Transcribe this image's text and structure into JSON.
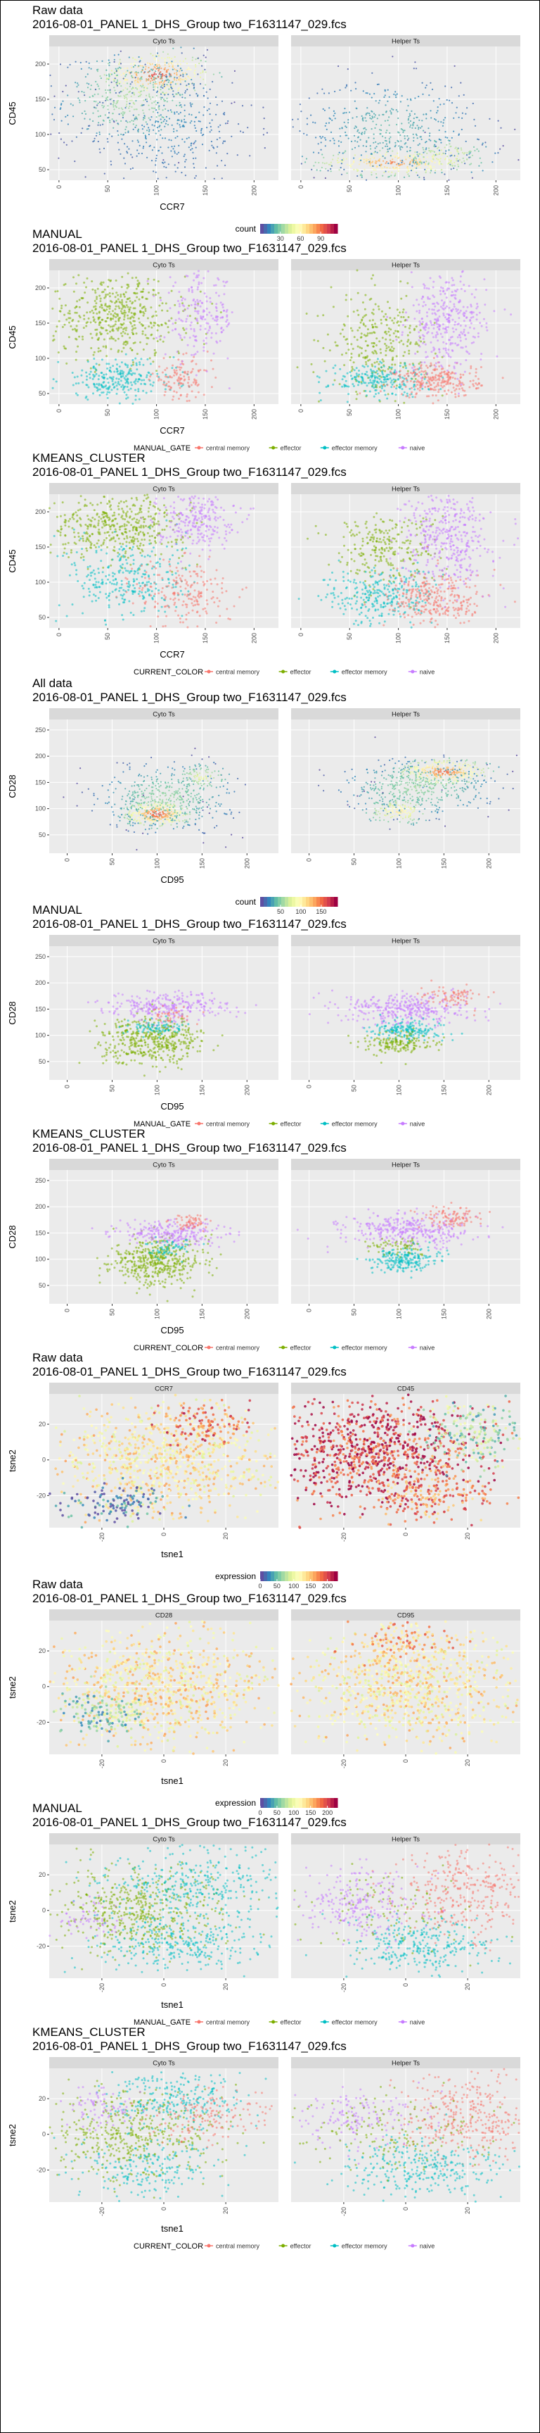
{
  "common": {
    "filename": "2016-08-01_PANEL 1_DHS_Group two_F1631147_029.fcs",
    "panels_cells": [
      "Cyto Ts",
      "Helper Ts"
    ]
  },
  "colors": {
    "panel_bg": "#ebebeb",
    "strip_bg": "#d9d9d9",
    "gate_central_memory": "#f8766d",
    "gate_effector": "#7cae00",
    "gate_effector_memory": "#00bfc4",
    "gate_naive": "#c77cff",
    "density_low": "#5e4fa2",
    "density_mid": "#ffffbf",
    "density_high": "#9e0142"
  },
  "chart_data": [
    {
      "type": "scatter",
      "section_title": "Raw data",
      "subtitle": "2016-08-01_PANEL 1_DHS_Group two_F1631147_029.fcs",
      "facets": [
        "Cyto Ts",
        "Helper Ts"
      ],
      "xlabel": "CCR7",
      "ylabel": "CD45",
      "x_ticks": [
        "0",
        "50",
        "100",
        "150",
        "200"
      ],
      "y_ticks": [
        "50",
        "100",
        "150",
        "200"
      ],
      "xlim": [
        -10,
        225
      ],
      "ylim": [
        35,
        225
      ],
      "color_mode": "density",
      "legend": {
        "title": "count",
        "ticks": [
          "30",
          "60",
          "90"
        ],
        "range": [
          0,
          115
        ]
      },
      "clusters": [
        [
          {
            "x": 100,
            "y": 185,
            "sx": 28,
            "sy": 16,
            "n": 320,
            "level": 0.9
          },
          {
            "x": 75,
            "y": 150,
            "sx": 35,
            "sy": 30,
            "n": 420,
            "level": 0.35
          },
          {
            "x": 110,
            "y": 110,
            "sx": 45,
            "sy": 45,
            "n": 380,
            "level": 0.12
          }
        ],
        [
          {
            "x": 95,
            "y": 60,
            "sx": 40,
            "sy": 9,
            "n": 300,
            "level": 0.8
          },
          {
            "x": 90,
            "y": 110,
            "sx": 45,
            "sy": 35,
            "n": 450,
            "level": 0.2
          },
          {
            "x": 150,
            "y": 70,
            "sx": 20,
            "sy": 12,
            "n": 120,
            "level": 0.5
          }
        ]
      ]
    },
    {
      "type": "scatter",
      "section_title": "MANUAL",
      "subtitle": "2016-08-01_PANEL 1_DHS_Group two_F1631147_029.fcs",
      "facets": [
        "Cyto Ts",
        "Helper Ts"
      ],
      "xlabel": "CCR7",
      "ylabel": "CD45",
      "x_ticks": [
        "0",
        "50",
        "100",
        "150",
        "200"
      ],
      "y_ticks": [
        "50",
        "100",
        "150",
        "200"
      ],
      "xlim": [
        -10,
        225
      ],
      "ylim": [
        35,
        225
      ],
      "color_mode": "gate",
      "legend": {
        "title": "MANUAL_GATE",
        "items": [
          "central memory",
          "effector",
          "effector memory",
          "naive"
        ]
      },
      "clusters": [
        [
          {
            "x": 60,
            "y": 160,
            "sx": 35,
            "sy": 30,
            "n": 500,
            "g": 1
          },
          {
            "x": 60,
            "y": 70,
            "sx": 30,
            "sy": 14,
            "n": 250,
            "g": 2
          },
          {
            "x": 125,
            "y": 70,
            "sx": 15,
            "sy": 14,
            "n": 120,
            "g": 0
          },
          {
            "x": 145,
            "y": 160,
            "sx": 18,
            "sy": 30,
            "n": 200,
            "g": 3
          }
        ],
        [
          {
            "x": 80,
            "y": 120,
            "sx": 25,
            "sy": 35,
            "n": 300,
            "g": 1
          },
          {
            "x": 80,
            "y": 70,
            "sx": 25,
            "sy": 12,
            "n": 220,
            "g": 2
          },
          {
            "x": 140,
            "y": 68,
            "sx": 22,
            "sy": 12,
            "n": 250,
            "g": 0
          },
          {
            "x": 150,
            "y": 150,
            "sx": 20,
            "sy": 35,
            "n": 350,
            "g": 3
          }
        ]
      ]
    },
    {
      "type": "scatter",
      "section_title": "KMEANS_CLUSTER",
      "subtitle": "2016-08-01_PANEL 1_DHS_Group two_F1631147_029.fcs",
      "facets": [
        "Cyto Ts",
        "Helper Ts"
      ],
      "xlabel": "CCR7",
      "ylabel": "CD45",
      "x_ticks": [
        "0",
        "50",
        "100",
        "150",
        "200"
      ],
      "y_ticks": [
        "50",
        "100",
        "150",
        "200"
      ],
      "xlim": [
        -10,
        225
      ],
      "ylim": [
        35,
        225
      ],
      "color_mode": "gate",
      "legend": {
        "title": "CURRENT_COLOR",
        "items": [
          "central memory",
          "effector",
          "effector memory",
          "naive"
        ]
      },
      "clusters": [
        [
          {
            "x": 60,
            "y": 180,
            "sx": 35,
            "sy": 22,
            "n": 450,
            "g": 1
          },
          {
            "x": 70,
            "y": 105,
            "sx": 30,
            "sy": 30,
            "n": 300,
            "g": 2
          },
          {
            "x": 130,
            "y": 85,
            "sx": 25,
            "sy": 25,
            "n": 200,
            "g": 0
          },
          {
            "x": 140,
            "y": 190,
            "sx": 20,
            "sy": 20,
            "n": 250,
            "g": 3
          }
        ],
        [
          {
            "x": 85,
            "y": 150,
            "sx": 28,
            "sy": 25,
            "n": 250,
            "g": 1
          },
          {
            "x": 80,
            "y": 80,
            "sx": 28,
            "sy": 20,
            "n": 280,
            "g": 2
          },
          {
            "x": 140,
            "y": 75,
            "sx": 25,
            "sy": 20,
            "n": 300,
            "g": 0
          },
          {
            "x": 150,
            "y": 165,
            "sx": 22,
            "sy": 35,
            "n": 400,
            "g": 3
          }
        ]
      ]
    },
    {
      "type": "scatter",
      "section_title": "All data",
      "subtitle": "2016-08-01_PANEL 1_DHS_Group two_F1631147_029.fcs",
      "facets": [
        "Cyto Ts",
        "Helper Ts"
      ],
      "xlabel": "CD95",
      "ylabel": "CD28",
      "x_ticks": [
        "0",
        "50",
        "100",
        "150",
        "200"
      ],
      "y_ticks": [
        "50",
        "100",
        "150",
        "200",
        "250"
      ],
      "xlim": [
        -20,
        235
      ],
      "ylim": [
        15,
        270
      ],
      "color_mode": "density",
      "legend": {
        "title": "count",
        "ticks": [
          "50",
          "100",
          "150"
        ],
        "range": [
          0,
          190
        ]
      },
      "clusters": [
        [
          {
            "x": 100,
            "y": 90,
            "sx": 18,
            "sy": 12,
            "n": 350,
            "level": 0.9
          },
          {
            "x": 110,
            "y": 120,
            "sx": 35,
            "sy": 30,
            "n": 450,
            "level": 0.3
          },
          {
            "x": 150,
            "y": 160,
            "sx": 15,
            "sy": 12,
            "n": 100,
            "level": 0.45
          }
        ],
        [
          {
            "x": 150,
            "y": 170,
            "sx": 25,
            "sy": 12,
            "n": 320,
            "level": 0.85
          },
          {
            "x": 120,
            "y": 140,
            "sx": 40,
            "sy": 25,
            "n": 450,
            "level": 0.3
          },
          {
            "x": 100,
            "y": 95,
            "sx": 18,
            "sy": 12,
            "n": 150,
            "level": 0.6
          }
        ]
      ]
    },
    {
      "type": "scatter",
      "section_title": "MANUAL",
      "subtitle": "2016-08-01_PANEL 1_DHS_Group two_F1631147_029.fcs",
      "facets": [
        "Cyto Ts",
        "Helper Ts"
      ],
      "xlabel": "CD95",
      "ylabel": "CD28",
      "x_ticks": [
        "0",
        "50",
        "100",
        "150",
        "200"
      ],
      "y_ticks": [
        "50",
        "100",
        "150",
        "200",
        "250"
      ],
      "xlim": [
        -20,
        235
      ],
      "ylim": [
        15,
        270
      ],
      "color_mode": "gate",
      "legend": {
        "title": "MANUAL_GATE",
        "items": [
          "central memory",
          "effector",
          "effector memory",
          "naive"
        ]
      },
      "clusters": [
        [
          {
            "x": 95,
            "y": 90,
            "sx": 28,
            "sy": 22,
            "n": 450,
            "g": 1
          },
          {
            "x": 110,
            "y": 155,
            "sx": 35,
            "sy": 13,
            "n": 280,
            "g": 3
          },
          {
            "x": 100,
            "y": 115,
            "sx": 15,
            "sy": 8,
            "n": 80,
            "g": 2
          },
          {
            "x": 120,
            "y": 140,
            "sx": 15,
            "sy": 10,
            "n": 40,
            "g": 0
          }
        ],
        [
          {
            "x": 110,
            "y": 150,
            "sx": 35,
            "sy": 15,
            "n": 350,
            "g": 3
          },
          {
            "x": 110,
            "y": 110,
            "sx": 20,
            "sy": 10,
            "n": 180,
            "g": 2
          },
          {
            "x": 100,
            "y": 85,
            "sx": 18,
            "sy": 10,
            "n": 160,
            "g": 1
          },
          {
            "x": 160,
            "y": 175,
            "sx": 18,
            "sy": 10,
            "n": 80,
            "g": 0
          }
        ]
      ]
    },
    {
      "type": "scatter",
      "section_title": "KMEANS_CLUSTER",
      "subtitle": "2016-08-01_PANEL 1_DHS_Group two_F1631147_029.fcs",
      "facets": [
        "Cyto Ts",
        "Helper Ts"
      ],
      "xlabel": "CD95",
      "ylabel": "CD28",
      "x_ticks": [
        "0",
        "50",
        "100",
        "150",
        "200"
      ],
      "y_ticks": [
        "50",
        "100",
        "150",
        "200",
        "250"
      ],
      "xlim": [
        -20,
        235
      ],
      "ylim": [
        15,
        270
      ],
      "color_mode": "gate",
      "legend": {
        "title": "CURRENT_COLOR",
        "items": [
          "central memory",
          "effector",
          "effector memory",
          "naive"
        ]
      },
      "clusters": [
        [
          {
            "x": 100,
            "y": 95,
            "sx": 25,
            "sy": 22,
            "n": 450,
            "g": 1
          },
          {
            "x": 115,
            "y": 150,
            "sx": 30,
            "sy": 12,
            "n": 250,
            "g": 3
          },
          {
            "x": 140,
            "y": 170,
            "sx": 12,
            "sy": 8,
            "n": 60,
            "g": 0
          },
          {
            "x": 110,
            "y": 120,
            "sx": 15,
            "sy": 8,
            "n": 60,
            "g": 2
          }
        ],
        [
          {
            "x": 110,
            "y": 155,
            "sx": 35,
            "sy": 15,
            "n": 350,
            "g": 3
          },
          {
            "x": 105,
            "y": 100,
            "sx": 18,
            "sy": 12,
            "n": 220,
            "g": 2
          },
          {
            "x": 160,
            "y": 180,
            "sx": 18,
            "sy": 10,
            "n": 100,
            "g": 0
          },
          {
            "x": 100,
            "y": 125,
            "sx": 15,
            "sy": 8,
            "n": 60,
            "g": 1
          }
        ]
      ]
    },
    {
      "type": "scatter",
      "section_title": "Raw data",
      "subtitle": "2016-08-01_PANEL 1_DHS_Group two_F1631147_029.fcs",
      "facets": [
        "CCR7",
        "CD45"
      ],
      "xlabel": "tsne1",
      "ylabel": "tsne2",
      "x_ticks": [
        "-20",
        "0",
        "20"
      ],
      "y_ticks": [
        "-20",
        "0",
        "20"
      ],
      "xlim": [
        -37,
        37
      ],
      "ylim": [
        -38,
        37
      ],
      "color_mode": "expression",
      "legend": {
        "title": "expression",
        "ticks": [
          "0",
          "50",
          "100",
          "150",
          "200"
        ],
        "range": [
          0,
          230
        ]
      },
      "facet_scale": [
        "viridis-ish",
        "spectral"
      ],
      "clusters": [
        [
          {
            "x": 0,
            "y": 0,
            "sx": 18,
            "sy": 16,
            "n": 900,
            "level": 0.55
          },
          {
            "x": -15,
            "y": -25,
            "sx": 8,
            "sy": 5,
            "n": 120,
            "level": 0.05
          },
          {
            "x": 15,
            "y": 20,
            "sx": 8,
            "sy": 6,
            "n": 120,
            "level": 0.8
          }
        ],
        [
          {
            "x": -10,
            "y": 5,
            "sx": 16,
            "sy": 15,
            "n": 900,
            "level": 0.9
          },
          {
            "x": 20,
            "y": 15,
            "sx": 8,
            "sy": 8,
            "n": 200,
            "level": 0.3
          },
          {
            "x": 10,
            "y": -20,
            "sx": 10,
            "sy": 8,
            "n": 200,
            "level": 0.75
          }
        ]
      ]
    },
    {
      "type": "scatter",
      "section_title": "Raw data",
      "subtitle": "2016-08-01_PANEL 1_DHS_Group two_F1631147_029.fcs",
      "facets": [
        "CD28",
        "CD95"
      ],
      "xlabel": "tsne1",
      "ylabel": "tsne2",
      "x_ticks": [
        "-20",
        "0",
        "20"
      ],
      "y_ticks": [
        "-20",
        "0",
        "20"
      ],
      "xlim": [
        -37,
        37
      ],
      "ylim": [
        -38,
        37
      ],
      "color_mode": "expression",
      "legend": {
        "title": "expression",
        "ticks": [
          "0",
          "50",
          "100",
          "150",
          "200"
        ],
        "range": [
          0,
          230
        ]
      },
      "clusters": [
        [
          {
            "x": 0,
            "y": 0,
            "sx": 18,
            "sy": 16,
            "n": 900,
            "level": 0.55
          },
          {
            "x": -20,
            "y": -15,
            "sx": 7,
            "sy": 6,
            "n": 150,
            "level": 0.25
          }
        ],
        [
          {
            "x": 0,
            "y": 0,
            "sx": 18,
            "sy": 16,
            "n": 900,
            "level": 0.55
          },
          {
            "x": 0,
            "y": 25,
            "sx": 8,
            "sy": 6,
            "n": 120,
            "level": 0.7
          }
        ]
      ]
    },
    {
      "type": "scatter",
      "section_title": "MANUAL",
      "subtitle": "2016-08-01_PANEL 1_DHS_Group two_F1631147_029.fcs",
      "facets": [
        "Cyto Ts",
        "Helper Ts"
      ],
      "xlabel": "tsne1",
      "ylabel": "tsne2",
      "x_ticks": [
        "-20",
        "0",
        "20"
      ],
      "y_ticks": [
        "-20",
        "0",
        "20"
      ],
      "xlim": [
        -37,
        37
      ],
      "ylim": [
        -38,
        37
      ],
      "color_mode": "gate",
      "legend": {
        "title": "MANUAL_GATE",
        "items": [
          "central memory",
          "effector",
          "effector memory",
          "naive"
        ]
      },
      "clusters": [
        [
          {
            "x": -10,
            "y": 0,
            "sx": 14,
            "sy": 12,
            "n": 500,
            "g": 1
          },
          {
            "x": 10,
            "y": 15,
            "sx": 14,
            "sy": 10,
            "n": 350,
            "g": 2
          },
          {
            "x": 5,
            "y": -20,
            "sx": 14,
            "sy": 8,
            "n": 300,
            "g": 2
          },
          {
            "x": -25,
            "y": -5,
            "sx": 5,
            "sy": 5,
            "n": 60,
            "g": 3
          }
        ],
        [
          {
            "x": 20,
            "y": 10,
            "sx": 12,
            "sy": 12,
            "n": 350,
            "g": 0
          },
          {
            "x": 5,
            "y": -20,
            "sx": 12,
            "sy": 8,
            "n": 300,
            "g": 2
          },
          {
            "x": -15,
            "y": 5,
            "sx": 10,
            "sy": 10,
            "n": 250,
            "g": 3
          },
          {
            "x": -5,
            "y": 0,
            "sx": 15,
            "sy": 12,
            "n": 100,
            "g": 1
          }
        ]
      ]
    },
    {
      "type": "scatter",
      "section_title": "KMEANS_CLUSTER",
      "subtitle": "2016-08-01_PANEL 1_DHS_Group two_F1631147_029.fcs",
      "facets": [
        "Cyto Ts",
        "Helper Ts"
      ],
      "xlabel": "tsne1",
      "ylabel": "tsne2",
      "x_ticks": [
        "-20",
        "0",
        "20"
      ],
      "y_ticks": [
        "-20",
        "0",
        "20"
      ],
      "xlim": [
        -37,
        37
      ],
      "ylim": [
        -38,
        37
      ],
      "color_mode": "gate",
      "legend": {
        "title": "CURRENT_COLOR",
        "items": [
          "central memory",
          "effector",
          "effector memory",
          "naive"
        ]
      },
      "clusters": [
        [
          {
            "x": -10,
            "y": 0,
            "sx": 14,
            "sy": 12,
            "n": 450,
            "g": 1
          },
          {
            "x": 5,
            "y": 20,
            "sx": 12,
            "sy": 8,
            "n": 250,
            "g": 2
          },
          {
            "x": -5,
            "y": -20,
            "sx": 12,
            "sy": 8,
            "n": 200,
            "g": 2
          },
          {
            "x": 15,
            "y": 10,
            "sx": 10,
            "sy": 8,
            "n": 150,
            "g": 0
          },
          {
            "x": -20,
            "y": 15,
            "sx": 6,
            "sy": 6,
            "n": 80,
            "g": 3
          }
        ],
        [
          {
            "x": 20,
            "y": 10,
            "sx": 12,
            "sy": 12,
            "n": 350,
            "g": 0
          },
          {
            "x": 5,
            "y": -20,
            "sx": 12,
            "sy": 8,
            "n": 300,
            "g": 2
          },
          {
            "x": -15,
            "y": 10,
            "sx": 10,
            "sy": 8,
            "n": 150,
            "g": 3
          },
          {
            "x": -5,
            "y": 0,
            "sx": 15,
            "sy": 12,
            "n": 150,
            "g": 1
          }
        ]
      ]
    }
  ]
}
